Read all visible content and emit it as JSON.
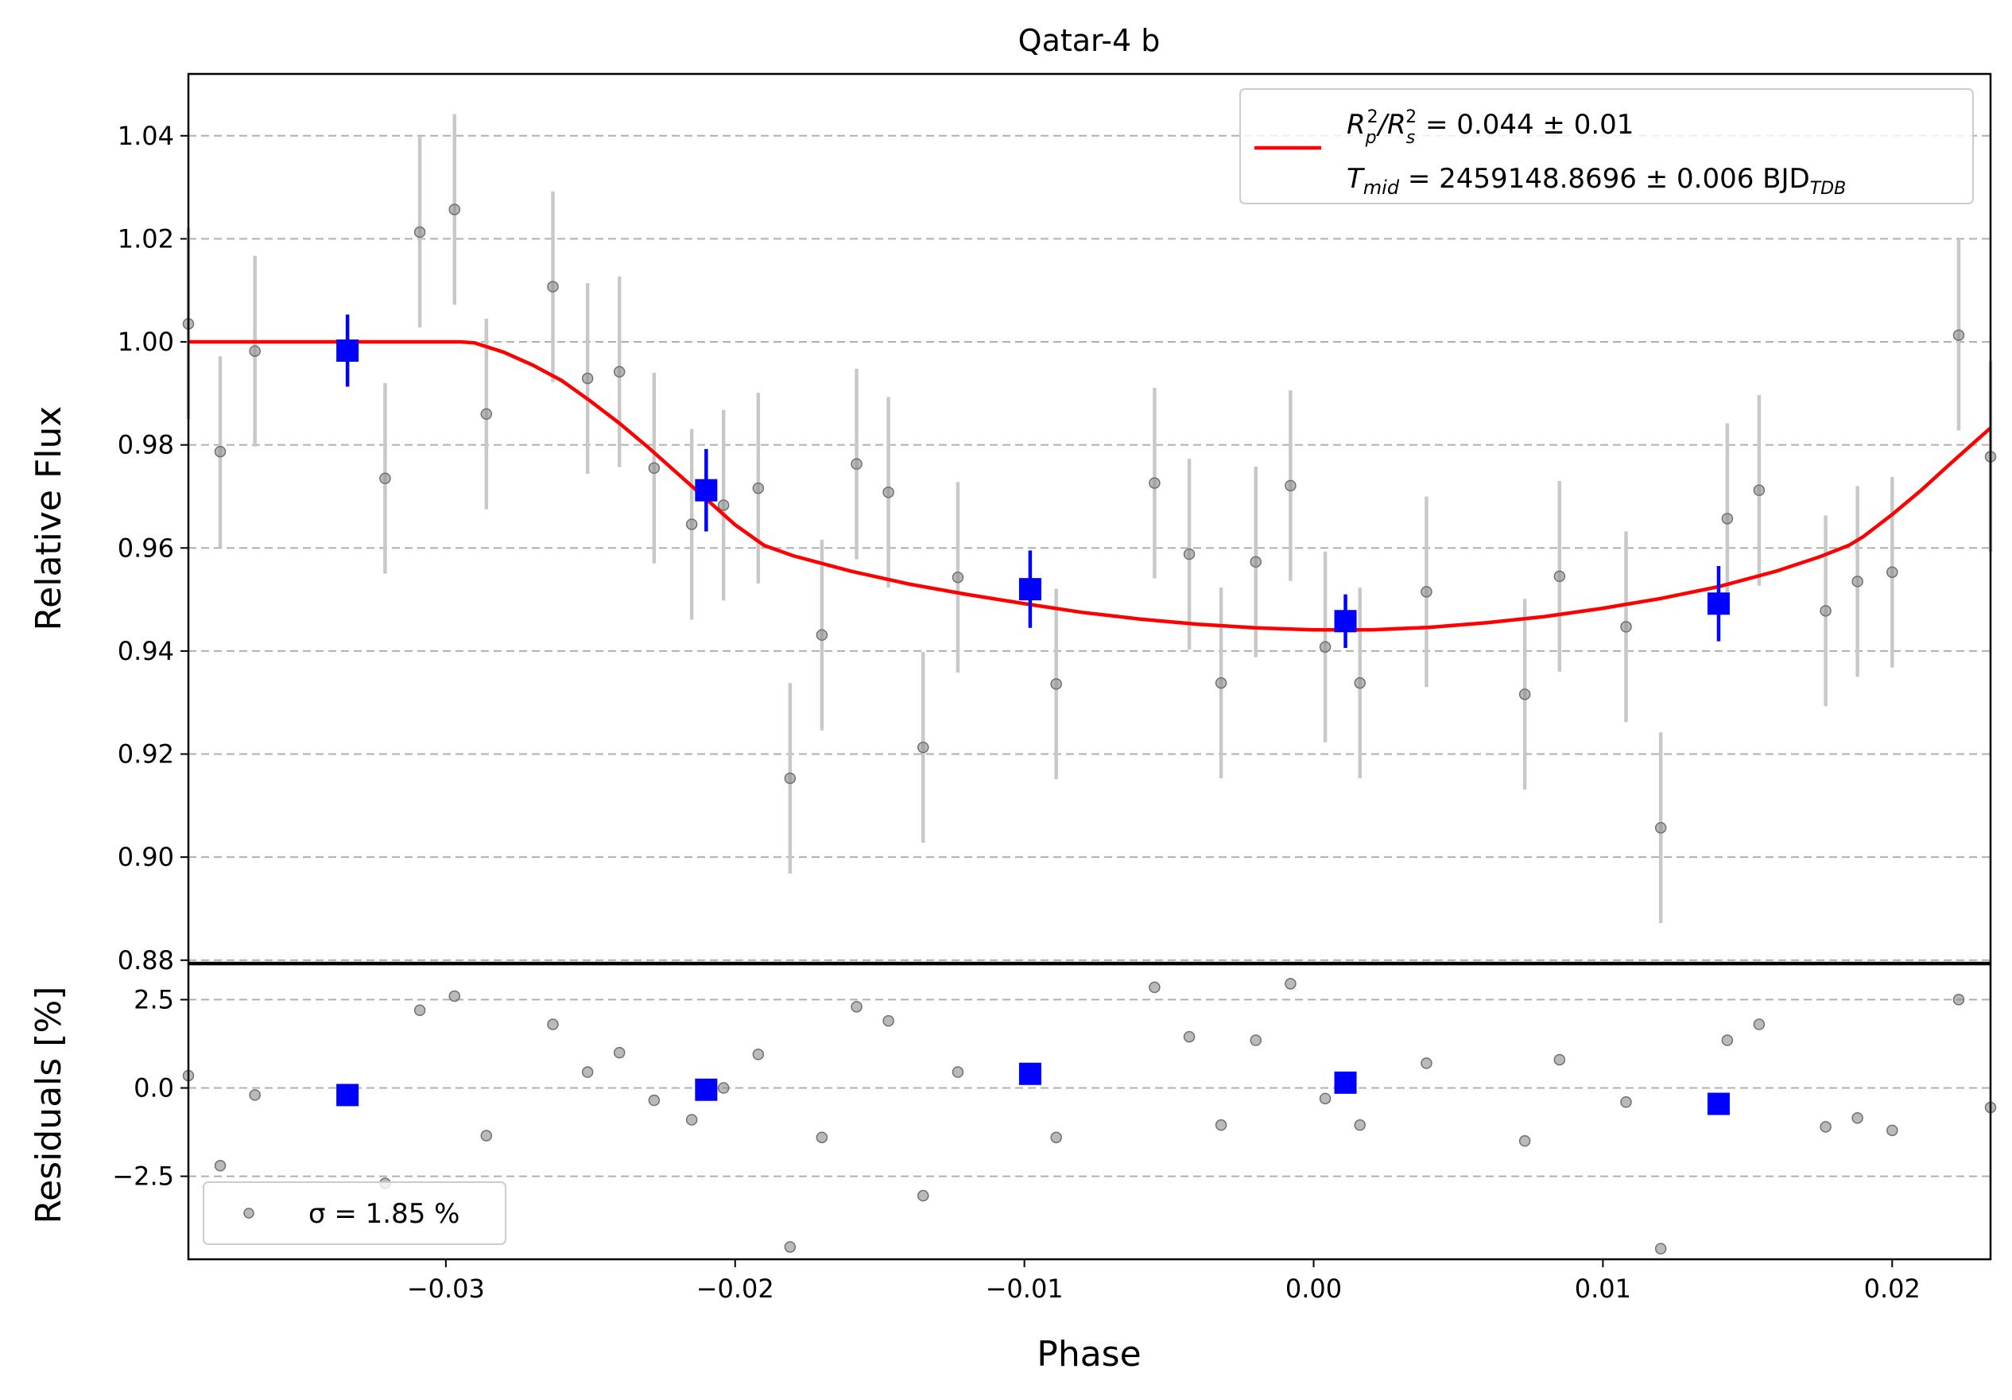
{
  "chart_data": {
    "type": "scatter",
    "title": "Qatar-4 b",
    "xlabel": "Phase",
    "top_panel": {
      "ylabel": "Relative Flux",
      "xlim": [
        -0.0389,
        0.0234
      ],
      "ylim": [
        0.8795,
        1.052
      ],
      "yticks": [
        "0.88",
        "0.90",
        "0.92",
        "0.94",
        "0.96",
        "0.98",
        "1.00",
        "1.02",
        "1.04"
      ],
      "grid": "horizontal dashed",
      "legend_position": "top-right",
      "legend": {
        "line1": {
          "prefix": "R",
          "sub1": "p",
          "sup1": "2",
          "mid": "/R",
          "sub2": "s",
          "sup2": "2",
          "suffix": " = 0.044 ± 0.01"
        },
        "line2": {
          "prefix": "T",
          "sub1": "mid",
          "value": " = 2459148.8696 ± 0.006 BJD",
          "sub2": "TDB"
        }
      },
      "data_points": {
        "x": [
          -0.0389,
          -0.0378,
          -0.0366,
          -0.0321,
          -0.0309,
          -0.0297,
          -0.0286,
          -0.0263,
          -0.0251,
          -0.024,
          -0.0228,
          -0.0215,
          -0.0204,
          -0.0192,
          -0.0181,
          -0.017,
          -0.0158,
          -0.0147,
          -0.0135,
          -0.0123,
          -0.0089,
          -0.0055,
          -0.0043,
          -0.0032,
          -0.002,
          -0.0008,
          0.0004,
          0.0016,
          0.0039,
          0.0073,
          0.0085,
          0.0108,
          0.012,
          0.0143,
          0.0154,
          0.0177,
          0.0188,
          0.02,
          0.0223,
          0.0234
        ],
        "y": [
          1.0035,
          0.9787,
          0.9982,
          0.9735,
          1.0213,
          1.0257,
          0.986,
          1.0107,
          0.9929,
          0.9942,
          0.9755,
          0.9646,
          0.9683,
          0.9716,
          0.9153,
          0.9431,
          0.9763,
          0.9708,
          0.9213,
          0.9543,
          0.9336,
          0.9726,
          0.9588,
          0.9338,
          0.9573,
          0.9721,
          0.9408,
          0.9338,
          0.9515,
          0.9316,
          0.9545,
          0.9447,
          0.9057,
          0.9657,
          0.9712,
          0.9478,
          0.9535,
          0.9553,
          1.0013,
          0.9777
        ],
        "yerr": 0.0185,
        "color": "#8c8c8c"
      },
      "binned_points": {
        "x": [
          -0.0334,
          -0.021,
          -0.0098,
          0.0011,
          0.014
        ],
        "y": [
          0.9983,
          0.9712,
          0.952,
          0.9458,
          0.9492
        ],
        "yerr": [
          0.007,
          0.008,
          0.0075,
          0.0052,
          0.0073
        ],
        "color": "#0000ff"
      },
      "model_curve": {
        "x": [
          -0.0389,
          -0.035,
          -0.031,
          -0.0295,
          -0.029,
          -0.028,
          -0.027,
          -0.026,
          -0.025,
          -0.024,
          -0.023,
          -0.022,
          -0.021,
          -0.02,
          -0.019,
          -0.018,
          -0.016,
          -0.014,
          -0.012,
          -0.01,
          -0.008,
          -0.006,
          -0.004,
          -0.002,
          0.0,
          0.002,
          0.004,
          0.006,
          0.008,
          0.01,
          0.012,
          0.014,
          0.016,
          0.0175,
          0.0185,
          0.019,
          0.02,
          0.021,
          0.022,
          0.023,
          0.0234
        ],
        "y": [
          1.0,
          1.0,
          1.0,
          1.0,
          0.9998,
          0.998,
          0.9955,
          0.9925,
          0.9885,
          0.9842,
          0.9795,
          0.9745,
          0.9695,
          0.9645,
          0.9605,
          0.9585,
          0.9555,
          0.953,
          0.951,
          0.9492,
          0.9475,
          0.9462,
          0.9452,
          0.9445,
          0.9441,
          0.9441,
          0.9446,
          0.9455,
          0.9467,
          0.9483,
          0.9502,
          0.9525,
          0.9555,
          0.9583,
          0.9605,
          0.9622,
          0.9665,
          0.9712,
          0.9763,
          0.9813,
          0.9833
        ],
        "color": "#ff0000"
      }
    },
    "bottom_panel": {
      "ylabel": "Residuals [%]",
      "xlim": [
        -0.0389,
        0.0234
      ],
      "ylim": [
        -4.85,
        3.5
      ],
      "yticks": [
        "−2.5",
        "0.0",
        "2.5"
      ],
      "ytick_values": [
        -2.5,
        0.0,
        2.5
      ],
      "xticks": [
        "−0.03",
        "−0.02",
        "−0.01",
        "0.00",
        "0.01",
        "0.02"
      ],
      "xtick_values": [
        -0.03,
        -0.02,
        -0.01,
        0.0,
        0.01,
        0.02
      ],
      "grid": "horizontal dashed",
      "legend_position": "bottom-left",
      "legend_label": "σ = 1.85 %",
      "residual_points": {
        "x": [
          -0.0389,
          -0.0378,
          -0.0366,
          -0.0321,
          -0.0309,
          -0.0297,
          -0.0286,
          -0.0263,
          -0.0251,
          -0.024,
          -0.0228,
          -0.0215,
          -0.0204,
          -0.0192,
          -0.0181,
          -0.017,
          -0.0158,
          -0.0147,
          -0.0135,
          -0.0123,
          -0.0089,
          -0.0055,
          -0.0043,
          -0.0032,
          -0.002,
          -0.0008,
          0.0004,
          0.0016,
          0.0039,
          0.0073,
          0.0085,
          0.0108,
          0.012,
          0.0143,
          0.0154,
          0.0177,
          0.0188,
          0.02,
          0.0223,
          0.0234
        ],
        "y": [
          0.35,
          -2.2,
          -0.2,
          -2.7,
          2.2,
          2.6,
          -1.35,
          1.8,
          0.45,
          1.0,
          -0.35,
          -0.9,
          0.0,
          0.95,
          -4.5,
          -1.4,
          2.3,
          1.9,
          -3.05,
          0.45,
          -1.4,
          2.85,
          1.45,
          -1.05,
          1.35,
          2.95,
          -0.3,
          -1.05,
          0.7,
          -1.5,
          0.8,
          -0.4,
          -4.55,
          1.35,
          1.8,
          -1.1,
          -0.85,
          -1.2,
          2.5,
          -0.55
        ],
        "color": "#8c8c8c"
      },
      "binned_residuals": {
        "x": [
          -0.0334,
          -0.021,
          -0.0098,
          0.0011,
          0.014
        ],
        "y": [
          -0.2,
          -0.05,
          0.4,
          0.15,
          -0.45
        ],
        "color": "#0000ff"
      }
    }
  }
}
